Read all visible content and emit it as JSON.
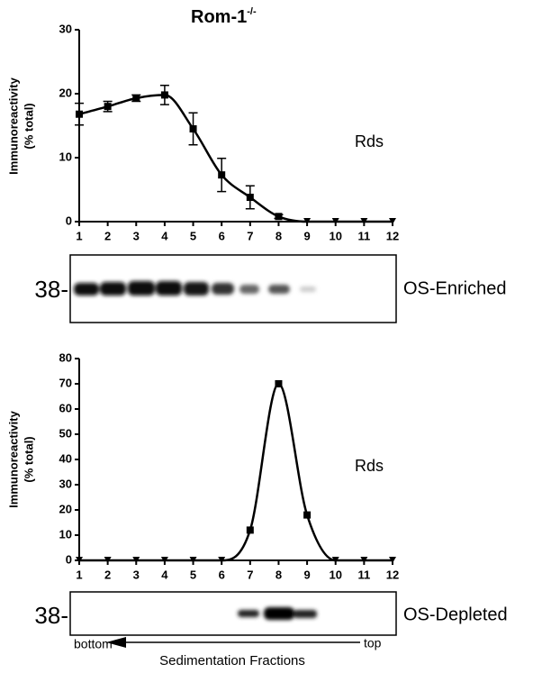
{
  "chart_data": [
    {
      "type": "line",
      "title": "Rom-1",
      "title_superscript": "-/-",
      "ylabel": [
        "Immunoreactivity",
        "(% total)"
      ],
      "annotation": "Rds",
      "marker_label": "38-",
      "blot_label": "OS-Enriched",
      "x": [
        1,
        2,
        3,
        4,
        5,
        6,
        7,
        8,
        9,
        10,
        11,
        12
      ],
      "xlim": [
        1,
        12
      ],
      "xticks": [
        1,
        2,
        3,
        4,
        5,
        6,
        7,
        8,
        9,
        10,
        11,
        12
      ],
      "ylim": [
        0,
        30
      ],
      "yticks": [
        0,
        10,
        20,
        30
      ],
      "series": [
        {
          "color": "#000000",
          "values": [
            16.8,
            18,
            19.3,
            19.8,
            14.5,
            7.3,
            3.8,
            0.8,
            0,
            0,
            0,
            0
          ],
          "errors": [
            1.7,
            0.8,
            0.5,
            1.5,
            2.5,
            2.6,
            1.8,
            0.3,
            0,
            0,
            0,
            0
          ]
        }
      ]
    },
    {
      "type": "line",
      "ylabel": [
        "Immunoreactivity",
        "(% total)"
      ],
      "annotation": "Rds",
      "marker_label": "38-",
      "blot_label": "OS-Depleted",
      "arrow_labels": [
        "bottom",
        "Sedimentation Fractions",
        "top"
      ],
      "x": [
        1,
        2,
        3,
        4,
        5,
        6,
        7,
        8,
        9,
        10,
        11,
        12
      ],
      "xlim": [
        1,
        12
      ],
      "xticks": [
        1,
        2,
        3,
        4,
        5,
        6,
        7,
        8,
        9,
        10,
        11,
        12
      ],
      "ylim": [
        0,
        80
      ],
      "yticks": [
        0,
        10,
        20,
        30,
        40,
        50,
        60,
        70,
        80
      ],
      "series": [
        {
          "color": "#000000",
          "values": [
            0,
            0,
            0,
            0,
            0,
            0,
            12,
            70,
            18,
            0,
            0,
            0
          ]
        }
      ]
    }
  ]
}
